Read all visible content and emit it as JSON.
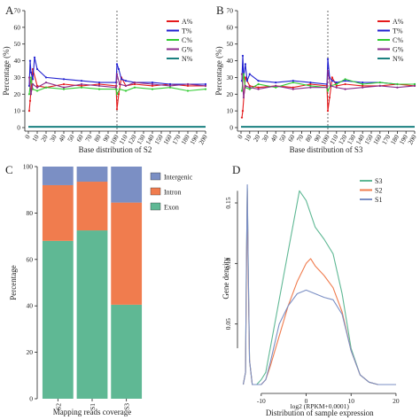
{
  "chart_data": [
    {
      "panel": "A",
      "type": "line",
      "xlabel": "Base distribution of S2",
      "ylabel": "Percentage (%)",
      "xlim": [
        0,
        200
      ],
      "ylim": [
        0,
        70
      ],
      "xticks": [
        0,
        10,
        20,
        30,
        40,
        50,
        60,
        70,
        80,
        90,
        100,
        110,
        120,
        130,
        140,
        150,
        160,
        170,
        180,
        190,
        200
      ],
      "yticks": [
        0,
        10,
        20,
        30,
        40,
        50,
        60,
        70
      ],
      "vline": 100,
      "legend_position": "top-right",
      "series": [
        {
          "name": "A%",
          "color": "#e41a1c",
          "x": [
            1,
            2,
            5,
            10,
            20,
            40,
            60,
            80,
            99,
            100,
            102,
            105,
            110,
            120,
            140,
            160,
            180,
            200
          ],
          "y": [
            10,
            16,
            35,
            25,
            24,
            26,
            25,
            26,
            25,
            11,
            20,
            30,
            25,
            26,
            25,
            26,
            25,
            25
          ]
        },
        {
          "name": "T%",
          "color": "#2020d0",
          "x": [
            1,
            2,
            3,
            5,
            7,
            10,
            20,
            40,
            60,
            80,
            99,
            100,
            102,
            105,
            110,
            120,
            140,
            160,
            180,
            200
          ],
          "y": [
            25,
            40,
            33,
            29,
            42,
            35,
            30,
            29,
            28,
            27,
            27,
            38,
            35,
            29,
            28,
            27,
            27,
            26,
            26,
            26
          ]
        },
        {
          "name": "C%",
          "color": "#33cc33",
          "x": [
            1,
            3,
            5,
            10,
            20,
            40,
            60,
            80,
            99,
            100,
            103,
            110,
            120,
            140,
            160,
            180,
            200
          ],
          "y": [
            20,
            30,
            23,
            22,
            24,
            23,
            24,
            23,
            23,
            20,
            23,
            22,
            24,
            23,
            24,
            22,
            23
          ]
        },
        {
          "name": "G%",
          "color": "#8b2c8b",
          "x": [
            1,
            3,
            5,
            10,
            20,
            40,
            60,
            80,
            99,
            100,
            103,
            110,
            120,
            140,
            160,
            180,
            200
          ],
          "y": [
            30,
            20,
            26,
            24,
            27,
            24,
            26,
            25,
            24,
            32,
            26,
            25,
            27,
            26,
            25,
            26,
            25
          ]
        },
        {
          "name": "N%",
          "color": "#1a8080",
          "x": [
            0,
            200
          ],
          "y": [
            0.5,
            0.5
          ]
        }
      ]
    },
    {
      "panel": "B",
      "type": "line",
      "xlabel": "Base distribution of S3",
      "ylabel": "Percentage (%)",
      "xlim": [
        0,
        200
      ],
      "ylim": [
        0,
        70
      ],
      "xticks": [
        0,
        10,
        20,
        30,
        40,
        50,
        60,
        70,
        80,
        90,
        100,
        110,
        120,
        130,
        140,
        150,
        160,
        170,
        180,
        190,
        200
      ],
      "yticks": [
        0,
        10,
        20,
        30,
        40,
        50,
        60,
        70
      ],
      "vline": 100,
      "legend_position": "top-right",
      "series": [
        {
          "name": "A%",
          "color": "#e41a1c",
          "x": [
            1,
            2,
            5,
            10,
            20,
            40,
            60,
            80,
            99,
            100,
            102,
            105,
            110,
            120,
            140,
            160,
            180,
            200
          ],
          "y": [
            6,
            10,
            30,
            25,
            24,
            25,
            24,
            26,
            25,
            10,
            18,
            30,
            25,
            26,
            25,
            25,
            26,
            25
          ]
        },
        {
          "name": "T%",
          "color": "#2020d0",
          "x": [
            1,
            2,
            3,
            5,
            7,
            10,
            20,
            40,
            60,
            80,
            99,
            100,
            102,
            105,
            110,
            120,
            140,
            160,
            180,
            200
          ],
          "y": [
            28,
            43,
            30,
            38,
            28,
            32,
            28,
            27,
            28,
            27,
            26,
            41,
            30,
            28,
            27,
            28,
            27,
            27,
            26,
            26
          ]
        },
        {
          "name": "C%",
          "color": "#33cc33",
          "x": [
            1,
            3,
            5,
            10,
            20,
            40,
            60,
            80,
            99,
            100,
            103,
            110,
            120,
            140,
            160,
            180,
            200
          ],
          "y": [
            22,
            32,
            24,
            23,
            26,
            24,
            27,
            25,
            24,
            22,
            25,
            26,
            29,
            26,
            27,
            26,
            26
          ]
        },
        {
          "name": "G%",
          "color": "#8b2c8b",
          "x": [
            1,
            3,
            5,
            10,
            20,
            40,
            60,
            80,
            99,
            100,
            103,
            110,
            120,
            140,
            160,
            180,
            200
          ],
          "y": [
            32,
            18,
            25,
            24,
            23,
            25,
            23,
            24,
            24,
            34,
            25,
            24,
            23,
            24,
            25,
            24,
            25
          ]
        },
        {
          "name": "N%",
          "color": "#1a8080",
          "x": [
            0,
            200
          ],
          "y": [
            0.5,
            0.5
          ]
        }
      ]
    },
    {
      "panel": "C",
      "type": "bar",
      "stacked": true,
      "xlabel": "Mapping reads coverage",
      "ylabel": "Percentage",
      "categories": [
        "S2",
        "S1",
        "S3"
      ],
      "ylim": [
        0,
        100
      ],
      "yticks": [
        0,
        20,
        40,
        60,
        80,
        100
      ],
      "legend_position": "right",
      "series": [
        {
          "name": "Exon",
          "color": "#5fb894",
          "values": [
            68,
            72.5,
            40.5
          ]
        },
        {
          "name": "Intron",
          "color": "#f07c4e",
          "values": [
            24,
            21,
            44
          ]
        },
        {
          "name": "Intergenic",
          "color": "#7b8fc4",
          "values": [
            8,
            6.5,
            15.5
          ]
        }
      ],
      "legend_order": [
        "Intergenic",
        "Intron",
        "Exon"
      ]
    },
    {
      "panel": "D",
      "type": "line",
      "xlabel": "Distribution of sample expression",
      "xlabel_inner": "log2 (RPKM+0.0001)",
      "ylabel": "Gene density",
      "xlim": [
        -14.5,
        21
      ],
      "ylim": [
        0,
        0.18
      ],
      "xticks": [
        -10,
        0,
        10,
        20
      ],
      "yticks": [
        0.05,
        0.1,
        0.15
      ],
      "legend_position": "top-right",
      "series": [
        {
          "name": "S3",
          "color": "#5fb894",
          "x": [
            -14,
            -13.5,
            -13.3,
            -13.1,
            -12.9,
            -12.6,
            -12,
            -11,
            -10,
            -9,
            -8,
            -6,
            -4,
            -2,
            -1.5,
            0,
            2,
            4,
            6,
            8,
            10,
            12,
            14,
            16,
            20
          ],
          "y": [
            0,
            0.01,
            0.1,
            0.162,
            0.1,
            0.02,
            0.0,
            0.0,
            0.004,
            0.01,
            0.03,
            0.07,
            0.11,
            0.15,
            0.16,
            0.152,
            0.13,
            0.12,
            0.108,
            0.075,
            0.03,
            0.008,
            0.002,
            0.0,
            0.0
          ]
        },
        {
          "name": "S2",
          "color": "#f07c4e",
          "x": [
            -14,
            -13.5,
            -13.3,
            -13.1,
            -12.9,
            -12.6,
            -12,
            -11,
            -10,
            -9,
            -8,
            -6,
            -4,
            -2,
            0,
            1,
            2,
            4,
            6,
            8,
            10,
            12,
            14,
            16,
            20
          ],
          "y": [
            0,
            0.01,
            0.09,
            0.16,
            0.09,
            0.02,
            0.0,
            0.0,
            0.0,
            0.004,
            0.015,
            0.04,
            0.065,
            0.085,
            0.1,
            0.104,
            0.098,
            0.09,
            0.08,
            0.06,
            0.028,
            0.008,
            0.002,
            0.0,
            0.0
          ]
        },
        {
          "name": "S1",
          "color": "#7b8fc4",
          "x": [
            -14,
            -13.5,
            -13.3,
            -13.1,
            -12.9,
            -12.6,
            -12,
            -11,
            -10,
            -9,
            -8,
            -6,
            -4,
            -2,
            0,
            2,
            4,
            6,
            8,
            10,
            12,
            14,
            16,
            20
          ],
          "y": [
            0,
            0.01,
            0.1,
            0.165,
            0.1,
            0.02,
            0.0,
            0.0,
            0.0,
            0.004,
            0.018,
            0.05,
            0.065,
            0.075,
            0.078,
            0.075,
            0.072,
            0.07,
            0.058,
            0.028,
            0.008,
            0.002,
            0.0,
            0.0
          ]
        }
      ],
      "legend_order": [
        "S3",
        "S2",
        "S1"
      ]
    }
  ]
}
